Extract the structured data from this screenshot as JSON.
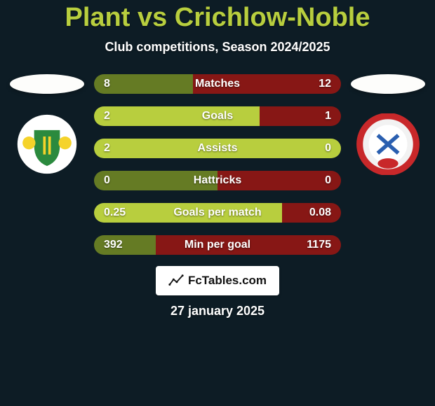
{
  "colors": {
    "background": "#0d1c25",
    "title": "#b8ce3e",
    "bar_green": "#657b24",
    "bar_green_hi": "#b8ce3e",
    "bar_red": "#871715",
    "white": "#ffffff"
  },
  "title": "Plant vs Crichlow-Noble",
  "subtitle": "Club competitions, Season 2024/2025",
  "branding_text": "FcTables.com",
  "date": "27 january 2025",
  "crest_left": {
    "bg": "#ffffff",
    "inner_shape": "shield",
    "inner_fill": "#2b8a3e",
    "accent": "#f5d32a"
  },
  "crest_right": {
    "bg": "#f2f2f2",
    "ring": "#c8282a",
    "center": "#ffffff",
    "accent": "#2a5fb0"
  },
  "bars": [
    {
      "label": "Matches",
      "left": "8",
      "right": "12",
      "left_pct": 40,
      "green_highlight": false
    },
    {
      "label": "Goals",
      "left": "2",
      "right": "1",
      "left_pct": 67,
      "green_highlight": true
    },
    {
      "label": "Assists",
      "left": "2",
      "right": "0",
      "left_pct": 100,
      "green_highlight": true
    },
    {
      "label": "Hattricks",
      "left": "0",
      "right": "0",
      "left_pct": 50,
      "green_highlight": false
    },
    {
      "label": "Goals per match",
      "left": "0.25",
      "right": "0.08",
      "left_pct": 76,
      "green_highlight": true
    },
    {
      "label": "Min per goal",
      "left": "392",
      "right": "1175",
      "left_pct": 25,
      "green_highlight": false
    }
  ]
}
